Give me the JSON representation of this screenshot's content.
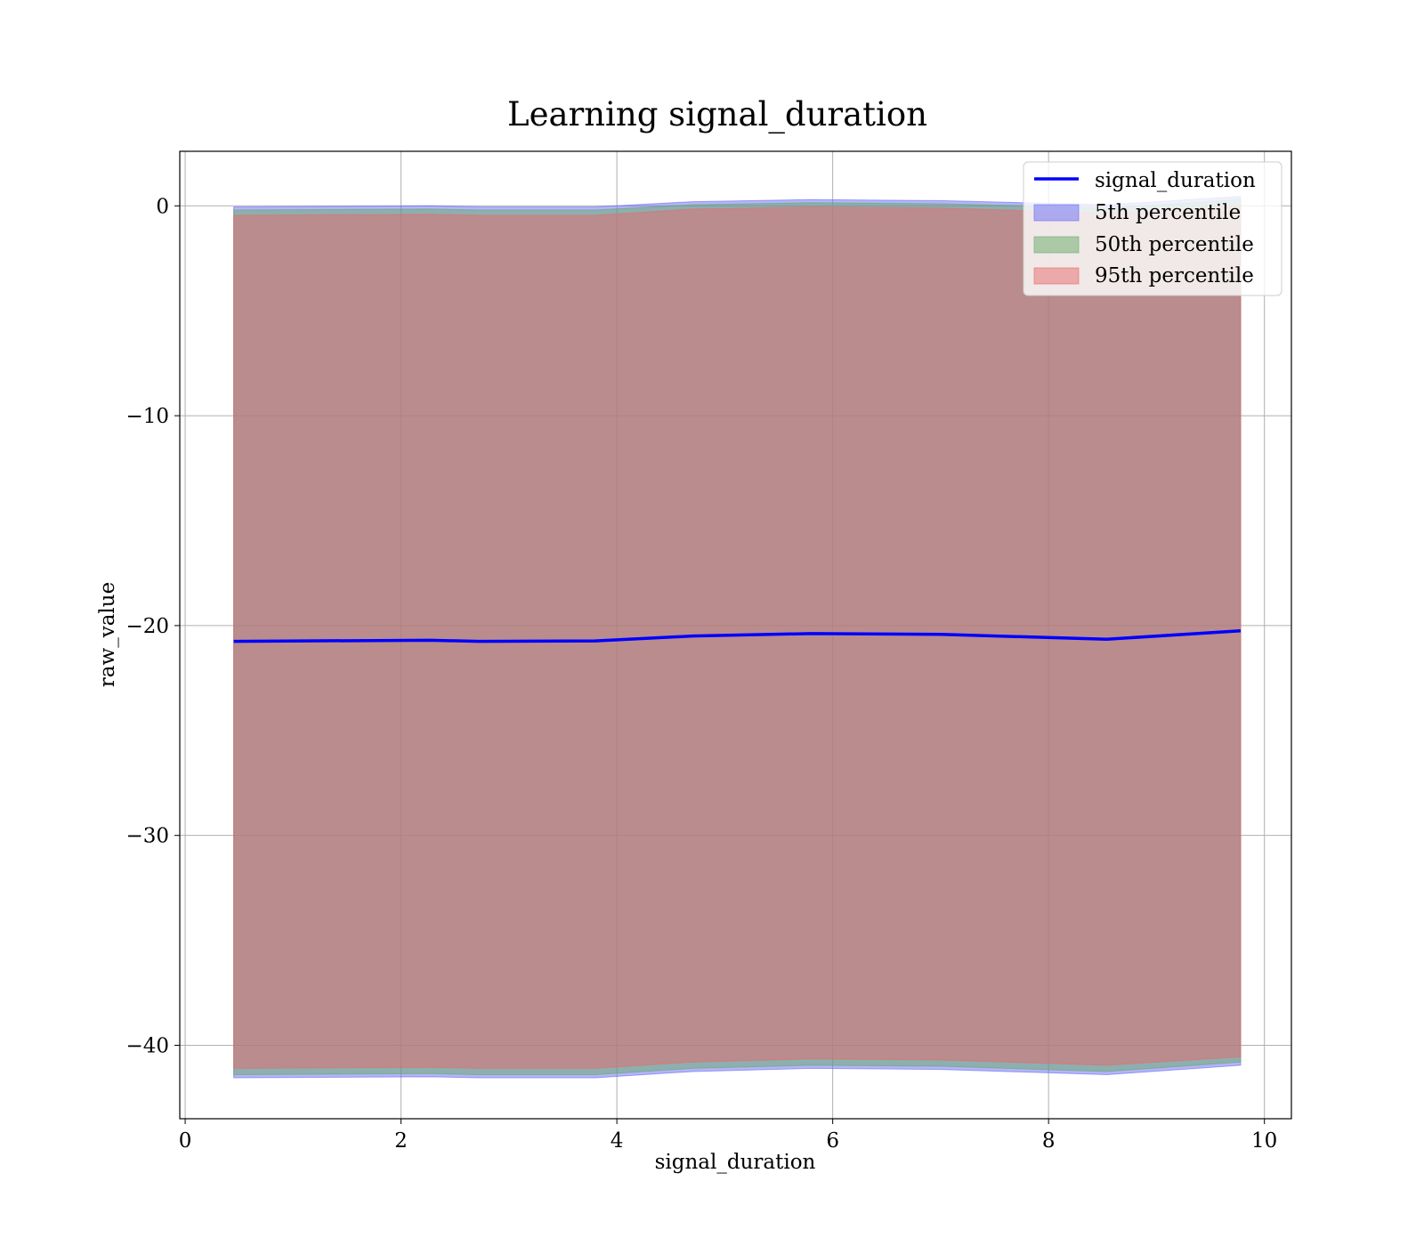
{
  "chart_data": {
    "type": "area",
    "title": "Learning signal_duration",
    "xlabel": "signal_duration",
    "ylabel": "raw_value",
    "xlim": [
      -0.05,
      10.25
    ],
    "ylim": [
      -43.5,
      2.6
    ],
    "xticks": [
      0,
      2,
      4,
      6,
      8,
      10
    ],
    "yticks": [
      0,
      -10,
      -20,
      -30,
      -40
    ],
    "xtick_labels": [
      "0",
      "2",
      "4",
      "6",
      "8",
      "10"
    ],
    "ytick_labels": [
      "0",
      "−10",
      "−20",
      "−30",
      "−40"
    ],
    "grid": true,
    "legend_position": "top-right",
    "x": [
      0.45,
      2.27,
      2.72,
      3.8,
      4.7,
      5.8,
      7.0,
      8.54,
      9.78
    ],
    "line": {
      "name": "signal_duration",
      "color": "#0000ff",
      "values": [
        -20.75,
        -20.7,
        -20.75,
        -20.73,
        -20.5,
        -20.38,
        -20.42,
        -20.65,
        -20.25
      ]
    },
    "bands": [
      {
        "name": "5th percentile",
        "color": "#6a6af5",
        "lower": [
          -41.55,
          -41.5,
          -41.55,
          -41.55,
          -41.25,
          -41.1,
          -41.15,
          -41.4,
          -40.95
        ],
        "upper": [
          -0.05,
          0.0,
          -0.05,
          -0.05,
          0.2,
          0.3,
          0.25,
          0.05,
          0.45
        ]
      },
      {
        "name": "50th percentile",
        "color": "#66aa66",
        "lower": [
          -41.4,
          -41.35,
          -41.4,
          -41.4,
          -41.1,
          -40.95,
          -41.0,
          -41.25,
          -40.8
        ],
        "upper": [
          -0.2,
          -0.15,
          -0.2,
          -0.2,
          0.05,
          0.15,
          0.1,
          -0.1,
          0.3
        ]
      },
      {
        "name": "95th percentile",
        "color": "#e86a6a",
        "lower": [
          -41.1,
          -41.05,
          -41.1,
          -41.1,
          -40.8,
          -40.65,
          -40.7,
          -40.95,
          -40.55
        ],
        "upper": [
          -0.45,
          -0.4,
          -0.45,
          -0.45,
          -0.15,
          -0.05,
          -0.1,
          -0.35,
          0.0
        ]
      }
    ]
  }
}
